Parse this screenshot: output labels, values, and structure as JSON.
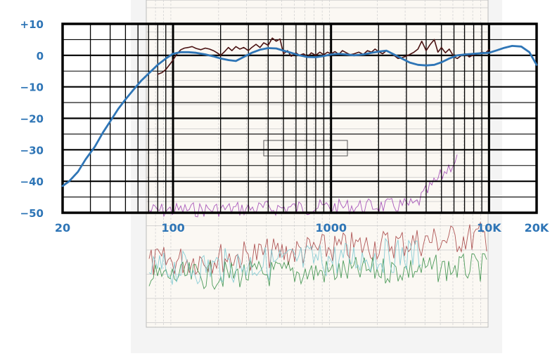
{
  "chart_data": {
    "type": "line",
    "title": "",
    "xlabel": "",
    "ylabel": "",
    "x_scale": "log",
    "xlim": [
      20,
      20000
    ],
    "ylim": [
      -50,
      10
    ],
    "grid": true,
    "x_tick_labels": [
      {
        "value": 20,
        "label": "20"
      },
      {
        "value": 100,
        "label": "100"
      },
      {
        "value": 1000,
        "label": "1000"
      },
      {
        "value": 10000,
        "label": "10K"
      },
      {
        "value": 20000,
        "label": "20K"
      }
    ],
    "y_tick_labels": [
      {
        "value": 10,
        "label": "+10"
      },
      {
        "value": 0,
        "label": "0"
      },
      {
        "value": -10,
        "label": "−10"
      },
      {
        "value": -20,
        "label": "−20"
      },
      {
        "value": -30,
        "label": "−30"
      },
      {
        "value": -40,
        "label": "−40"
      },
      {
        "value": -50,
        "label": "−50"
      }
    ],
    "series": [
      {
        "color": "#2e75b6",
        "x": [
          20,
          22,
          25,
          28,
          32,
          36,
          40,
          45,
          50,
          56,
          63,
          71,
          80,
          90,
          100,
          112,
          125,
          140,
          160,
          180,
          200,
          225,
          250,
          280,
          315,
          355,
          400,
          450,
          500,
          560,
          630,
          710,
          800,
          900,
          1000,
          1120,
          1250,
          1400,
          1600,
          1800,
          2000,
          2240,
          2500,
          2800,
          3150,
          3550,
          4000,
          4500,
          5000,
          5600,
          6300,
          7100,
          8000,
          9000,
          10000,
          11200,
          12500,
          14000,
          16000,
          18000,
          20000
        ],
        "y": [
          -41.5,
          -40,
          -37,
          -33,
          -29,
          -24.5,
          -21,
          -17,
          -14,
          -11,
          -8,
          -5.5,
          -3,
          -1,
          0.5,
          1,
          1,
          0.8,
          0.3,
          -0.3,
          -1,
          -1.5,
          -1.8,
          -0.5,
          0.8,
          1.8,
          2.3,
          2.2,
          1.5,
          0.8,
          0,
          -0.5,
          -0.6,
          -0.2,
          0.3,
          0.5,
          0.3,
          0,
          0.3,
          0.8,
          1.2,
          1.5,
          0.3,
          -1,
          -2.3,
          -3,
          -3.2,
          -3,
          -2.2,
          -1,
          0,
          0.3,
          0.5,
          0.7,
          0.8,
          1.6,
          2.4,
          3,
          2.8,
          1,
          -3
        ]
      },
      {
        "color": "#4a1212",
        "x": [
          80,
          85,
          90,
          95,
          100,
          106,
          112,
          118,
          125,
          132,
          140,
          150,
          160,
          170,
          180,
          190,
          200,
          212,
          224,
          236,
          250,
          265,
          280,
          300,
          315,
          335,
          355,
          375,
          400,
          425,
          450,
          475,
          500,
          530,
          560,
          600,
          630,
          670,
          710,
          750,
          800,
          850,
          900,
          950,
          1000,
          1060,
          1120,
          1180,
          1250,
          1320,
          1400,
          1500,
          1600,
          1700,
          1800,
          1900,
          2000,
          2120,
          2240,
          2360,
          2500,
          2650,
          2800,
          3000,
          3150,
          3350,
          3550,
          3750,
          4000,
          4250,
          4500,
          4750,
          5000,
          5300,
          5600,
          6000,
          6300,
          6700,
          7100,
          7500,
          8000,
          8500,
          9000,
          9500,
          10000
        ],
        "y": [
          -6,
          -5.5,
          -4.5,
          -3,
          -1.5,
          0.5,
          1.8,
          2.3,
          2.5,
          2.8,
          2.2,
          1.8,
          2.3,
          2,
          1.5,
          0.8,
          0,
          1.2,
          2.5,
          1.5,
          2.8,
          2,
          2.5,
          1.5,
          2.5,
          3.5,
          2.5,
          4,
          3.2,
          5.5,
          4.5,
          5.2,
          0.5,
          1.5,
          -0.3,
          0.8,
          0,
          0.5,
          -0.5,
          0.8,
          0,
          1,
          0.2,
          1,
          0.5,
          1.2,
          0.3,
          1.5,
          0.8,
          0.2,
          0.5,
          1,
          0.3,
          1.5,
          1,
          2,
          1.2,
          0.5,
          1.5,
          1,
          0,
          -1,
          -0.8,
          -0.2,
          0.3,
          1,
          2,
          4.5,
          1.5,
          3.5,
          5,
          1,
          2.5,
          0.8,
          2,
          -0.5,
          -1,
          0,
          0.5,
          -0.5,
          0.2,
          0.5,
          1,
          0.8,
          1.8
        ]
      }
    ]
  }
}
